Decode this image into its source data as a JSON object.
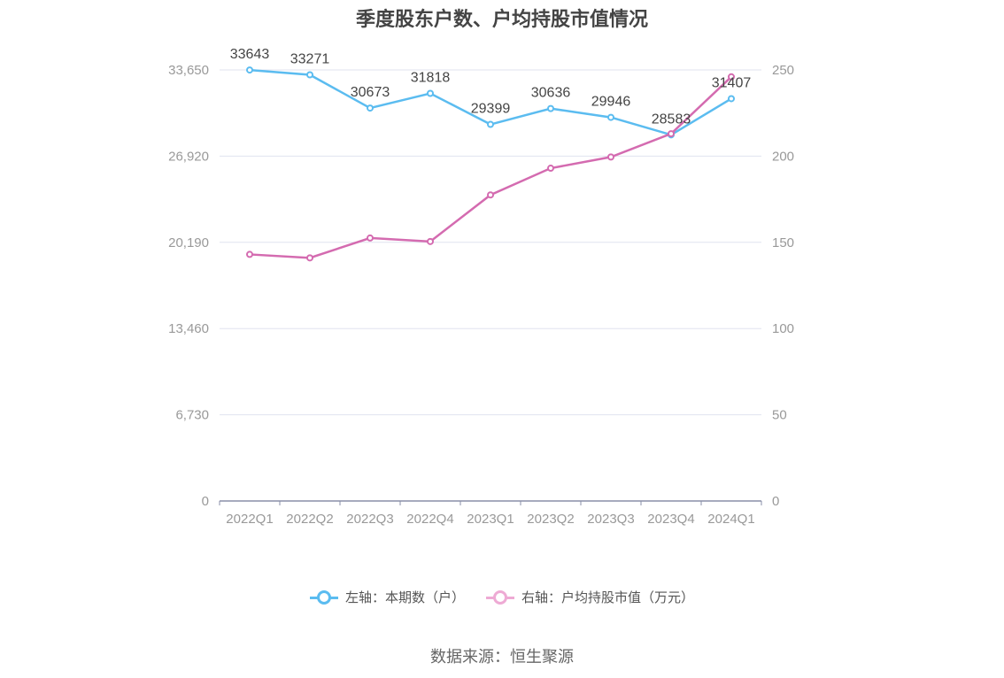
{
  "chart_data": {
    "type": "line",
    "title": "季度股东户数、户均持股市值情况",
    "categories": [
      "2022Q1",
      "2022Q2",
      "2022Q3",
      "2022Q4",
      "2023Q1",
      "2023Q2",
      "2023Q3",
      "2023Q4",
      "2024Q1"
    ],
    "left_axis": {
      "ticks": [
        "0",
        "6,730",
        "13,460",
        "20,190",
        "26,920",
        "33,650"
      ],
      "ylim": [
        0,
        33650
      ]
    },
    "right_axis": {
      "ticks": [
        "0",
        "50",
        "100",
        "150",
        "200",
        "250"
      ],
      "ylim": [
        0,
        250
      ]
    },
    "grid": true,
    "legend_position": "bottom",
    "series": [
      {
        "name": "左轴：本期数（户）",
        "axis": "left",
        "color": "#5bbcf0",
        "values": [
          33643,
          33271,
          30673,
          31818,
          29399,
          30636,
          29946,
          28583,
          31407
        ],
        "labels": [
          "33643",
          "33271",
          "30673",
          "31818",
          "29399",
          "30636",
          "29946",
          "28583",
          "31407"
        ]
      },
      {
        "name": "右轴：户均持股市值（万元）",
        "axis": "right",
        "color": "#d46bb0",
        "legend_color": "#eeaad4",
        "values": [
          143,
          141,
          152.5,
          150.5,
          177.5,
          193,
          199.5,
          213,
          246
        ]
      }
    ]
  },
  "source": "数据来源：恒生聚源"
}
